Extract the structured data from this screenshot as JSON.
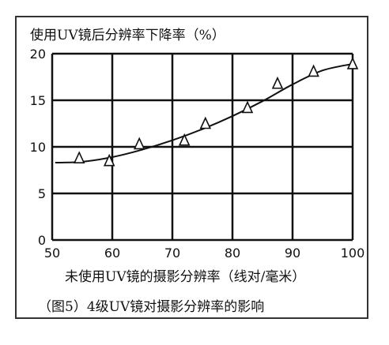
{
  "chart_data": {
    "type": "scatter",
    "ylabel": "使用UV镜后分辨率下降率（%）",
    "xlabel": "未使用UV镜的摄影分辨率（线对/毫米）",
    "caption": "（图5）4级UV镜对摄影分辨率的影响",
    "xlim": [
      50,
      100
    ],
    "ylim": [
      0,
      20
    ],
    "x_ticks": [
      50,
      60,
      70,
      80,
      90,
      100
    ],
    "y_ticks": [
      0,
      5,
      10,
      15,
      20
    ],
    "grid": true,
    "points": [
      {
        "x": 54.5,
        "y": 8.8
      },
      {
        "x": 59.5,
        "y": 8.5
      },
      {
        "x": 64.5,
        "y": 10.3
      },
      {
        "x": 72.0,
        "y": 10.7
      },
      {
        "x": 75.5,
        "y": 12.5
      },
      {
        "x": 82.5,
        "y": 14.2
      },
      {
        "x": 87.5,
        "y": 16.8
      },
      {
        "x": 93.5,
        "y": 18.1
      },
      {
        "x": 100.0,
        "y": 18.9
      }
    ],
    "fit_curve": [
      {
        "x": 50.5,
        "y": 8.3
      },
      {
        "x": 55,
        "y": 8.4
      },
      {
        "x": 60,
        "y": 8.9
      },
      {
        "x": 65,
        "y": 9.7
      },
      {
        "x": 70,
        "y": 10.7
      },
      {
        "x": 75,
        "y": 11.9
      },
      {
        "x": 80,
        "y": 13.3
      },
      {
        "x": 85,
        "y": 14.9
      },
      {
        "x": 90,
        "y": 16.7
      },
      {
        "x": 95,
        "y": 18.2
      },
      {
        "x": 100,
        "y": 18.9
      }
    ],
    "colors": {
      "line": "#111111",
      "grid": "#111111",
      "frame": "#333333"
    }
  }
}
